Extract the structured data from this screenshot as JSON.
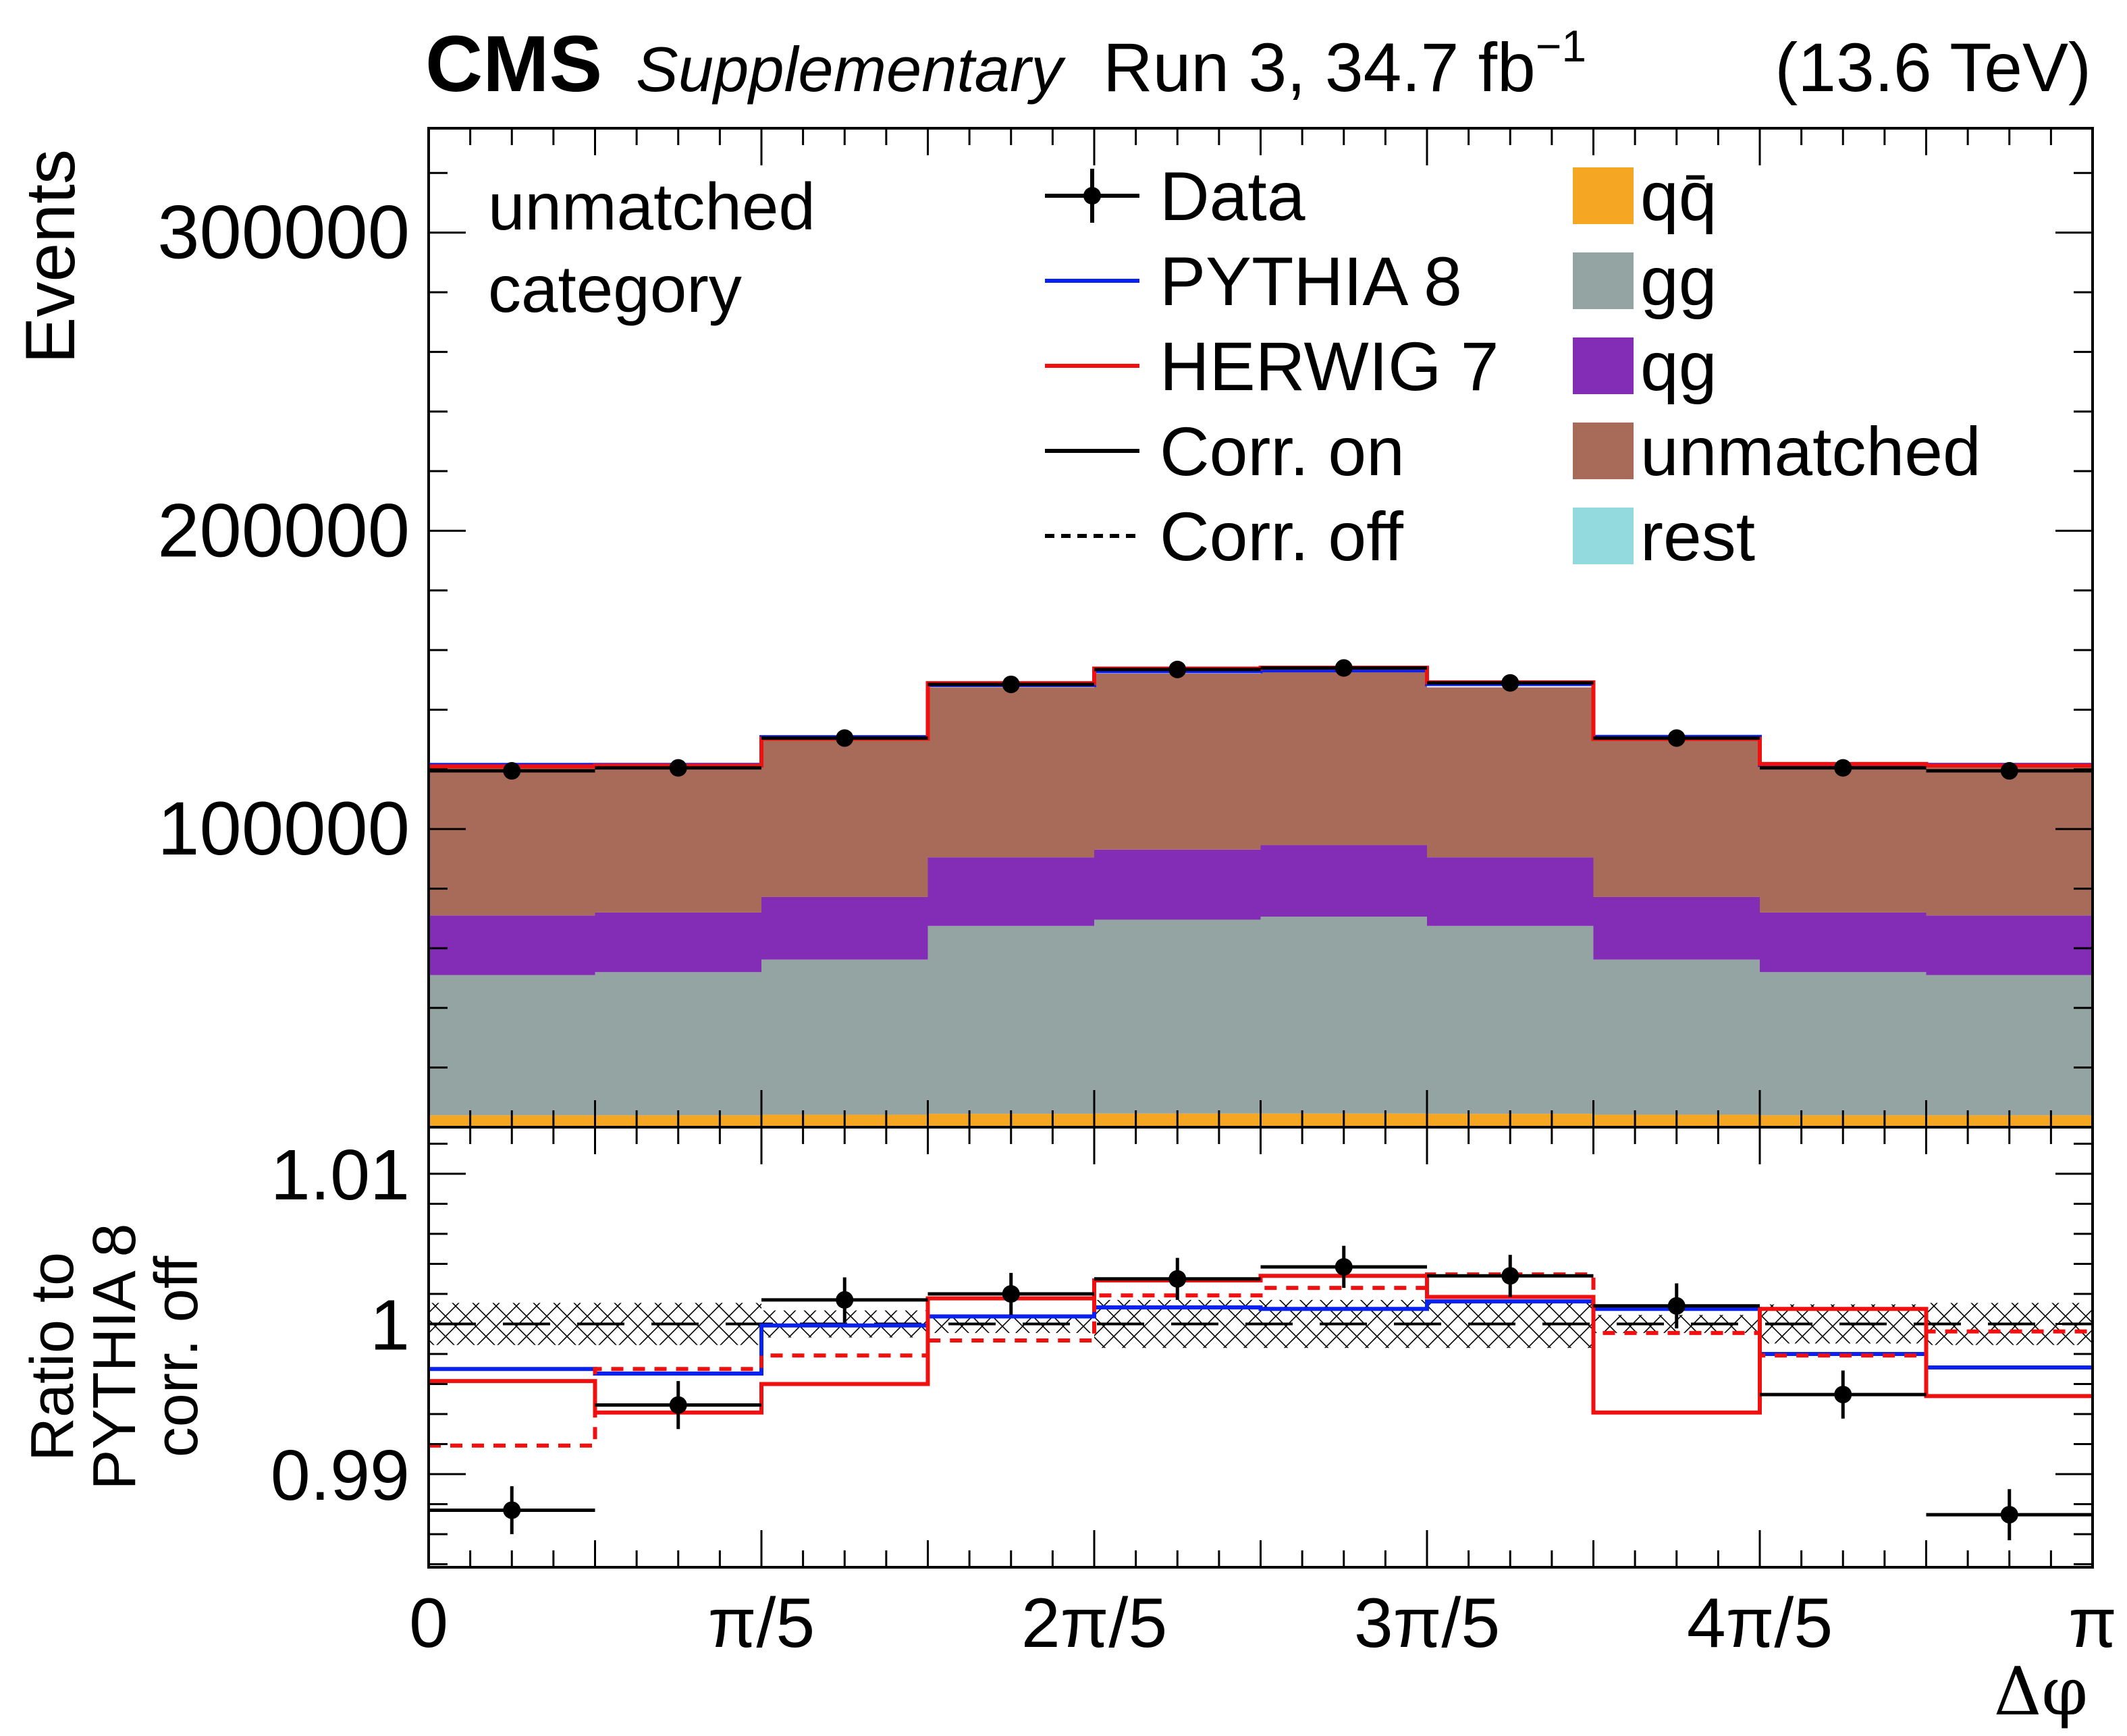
{
  "header": {
    "experiment": "CMS",
    "status": "Supplementary",
    "lumi": "Run 3, 34.7 fb",
    "lumi_exp": "−1",
    "energy": "(13.6 TeV)"
  },
  "category": {
    "line1": "unmatched",
    "line2": "category"
  },
  "chart_data": [
    {
      "type": "bar",
      "subtype": "stacked-histogram-with-lines",
      "title": "",
      "xlabel": "",
      "ylabel": "Events",
      "xlim": [
        0,
        1
      ],
      "ylim": [
        0,
        335000
      ],
      "x_unit": "pi",
      "bin_edges": [
        0,
        0.1,
        0.2,
        0.3,
        0.4,
        0.5,
        0.6,
        0.7,
        0.8,
        0.9,
        1.0
      ],
      "y_ticks": [
        100000,
        200000,
        300000
      ],
      "y_tick_labels": [
        "100000",
        "200000",
        "300000"
      ],
      "stack": [
        {
          "name": "qq̄",
          "color": "#f5a623",
          "values": [
            4000,
            4000,
            4200,
            4500,
            4600,
            4600,
            4500,
            4200,
            4000,
            4000
          ]
        },
        {
          "name": "gg",
          "color": "#94a4a2",
          "values": [
            47000,
            48000,
            52000,
            63000,
            65000,
            66000,
            63000,
            52000,
            48000,
            47000
          ]
        },
        {
          "name": "qg",
          "color": "#832db6",
          "values": [
            20000,
            20000,
            21000,
            23000,
            23500,
            24000,
            23000,
            21000,
            20000,
            20000
          ]
        },
        {
          "name": "unmatched",
          "color": "#a96b59",
          "values": [
            50000,
            49000,
            53000,
            57000,
            59000,
            58500,
            57000,
            53000,
            49000,
            50000
          ]
        },
        {
          "name": "rest",
          "color": "#92dadd",
          "values": [
            0,
            0,
            0,
            0,
            0,
            0,
            0,
            0,
            0,
            0
          ]
        }
      ],
      "series": [
        {
          "name": "PYTHIA 8",
          "style": "solid",
          "color": "#0a22f0",
          "values": [
            121500,
            121500,
            130800,
            148300,
            152900,
            153200,
            148600,
            130900,
            121500,
            121500
          ]
        },
        {
          "name": "HERWIG 7",
          "style": "solid",
          "color": "#f01010",
          "values": [
            121000,
            121300,
            130300,
            148900,
            153800,
            154100,
            149200,
            130200,
            121800,
            121300
          ]
        },
        {
          "name": "Data",
          "style": "points",
          "color": "#000000",
          "values": [
            119500,
            120500,
            130500,
            148500,
            153500,
            154000,
            149000,
            130500,
            120500,
            119500
          ],
          "errors": [
            350,
            350,
            360,
            390,
            390,
            390,
            390,
            360,
            350,
            350
          ]
        }
      ]
    },
    {
      "type": "line",
      "subtype": "ratio-panel",
      "title": "",
      "xlabel": "Δφ",
      "ylabel_lines": [
        "Ratio to",
        "PYTHIA 8",
        "corr. off"
      ],
      "xlim": [
        0,
        1
      ],
      "ylim": [
        0.9838,
        1.0131
      ],
      "x_ticks": [
        0,
        0.2,
        0.4,
        0.6,
        0.8,
        1.0
      ],
      "x_tick_labels": [
        "0",
        "π/5",
        "2π/5",
        "3π/5",
        "4π/5",
        "π"
      ],
      "y_ticks": [
        0.99,
        1.0,
        1.01
      ],
      "y_tick_labels": [
        "0.99",
        "1",
        "1.01"
      ],
      "reference_line": 1.0,
      "bin_edges": [
        0,
        0.1,
        0.2,
        0.3,
        0.4,
        0.5,
        0.6,
        0.7,
        0.8,
        0.9,
        1.0
      ],
      "series": [
        {
          "name": "PYTHIA 8 corr. on",
          "style": "solid",
          "color": "#0a22f0",
          "values": [
            0.997,
            0.9967,
            0.9999,
            1.0005,
            1.0011,
            1.001,
            1.0015,
            1.001,
            0.998,
            0.9971
          ]
        },
        {
          "name": "PYTHIA 8 corr. off",
          "style": "dashed",
          "color": "#0a22f0",
          "values": [
            1.0,
            1.0,
            1.0,
            1.0,
            1.0,
            1.0,
            1.0,
            1.0,
            1.0,
            1.0
          ]
        },
        {
          "name": "HERWIG 7 corr. on",
          "style": "solid",
          "color": "#f01010",
          "values": [
            0.9962,
            0.9941,
            0.996,
            1.0017,
            1.0029,
            1.0032,
            1.0018,
            0.9941,
            1.001,
            0.9952
          ]
        },
        {
          "name": "HERWIG 7 corr. off",
          "style": "dashed",
          "color": "#f01010",
          "values": [
            0.9919,
            0.997,
            0.9979,
            0.9989,
            1.0019,
            1.0024,
            1.0033,
            0.9994,
            0.9979,
            0.9995
          ]
        },
        {
          "name": "Data",
          "style": "points",
          "color": "#000000",
          "values": [
            0.9876,
            0.9946,
            1.0016,
            1.002,
            1.003,
            1.0038,
            1.0032,
            1.0012,
            0.9953,
            0.9873
          ],
          "errors": [
            0.0016,
            0.0016,
            0.0015,
            0.0014,
            0.0014,
            0.0014,
            0.0014,
            0.0015,
            0.0016,
            0.0017
          ]
        }
      ],
      "uncertainty_band": {
        "name": "syst. uncertainty",
        "lower": [
          0.9986,
          0.9986,
          0.9991,
          0.9994,
          0.9984,
          0.9984,
          0.9984,
          0.9994,
          0.9987,
          0.9986
        ],
        "upper": [
          1.0014,
          1.0014,
          1.0009,
          1.0006,
          1.0016,
          1.0016,
          1.0016,
          1.0006,
          1.0013,
          1.0014
        ]
      }
    }
  ],
  "legend": {
    "left": [
      {
        "label": "Data",
        "kind": "marker"
      },
      {
        "label": "PYTHIA 8",
        "kind": "line",
        "color": "#0a22f0"
      },
      {
        "label": "HERWIG 7",
        "kind": "line",
        "color": "#f01010"
      },
      {
        "label": "Corr. on",
        "kind": "line",
        "color": "#000000"
      },
      {
        "label": "Corr. off",
        "kind": "dashed",
        "color": "#000000"
      }
    ],
    "right": [
      {
        "label": "qq̄",
        "color": "#f5a623"
      },
      {
        "label": "gg",
        "color": "#94a4a2"
      },
      {
        "label": "qg",
        "color": "#832db6"
      },
      {
        "label": "unmatched",
        "color": "#a96b59"
      },
      {
        "label": "rest",
        "color": "#92dadd"
      }
    ]
  }
}
